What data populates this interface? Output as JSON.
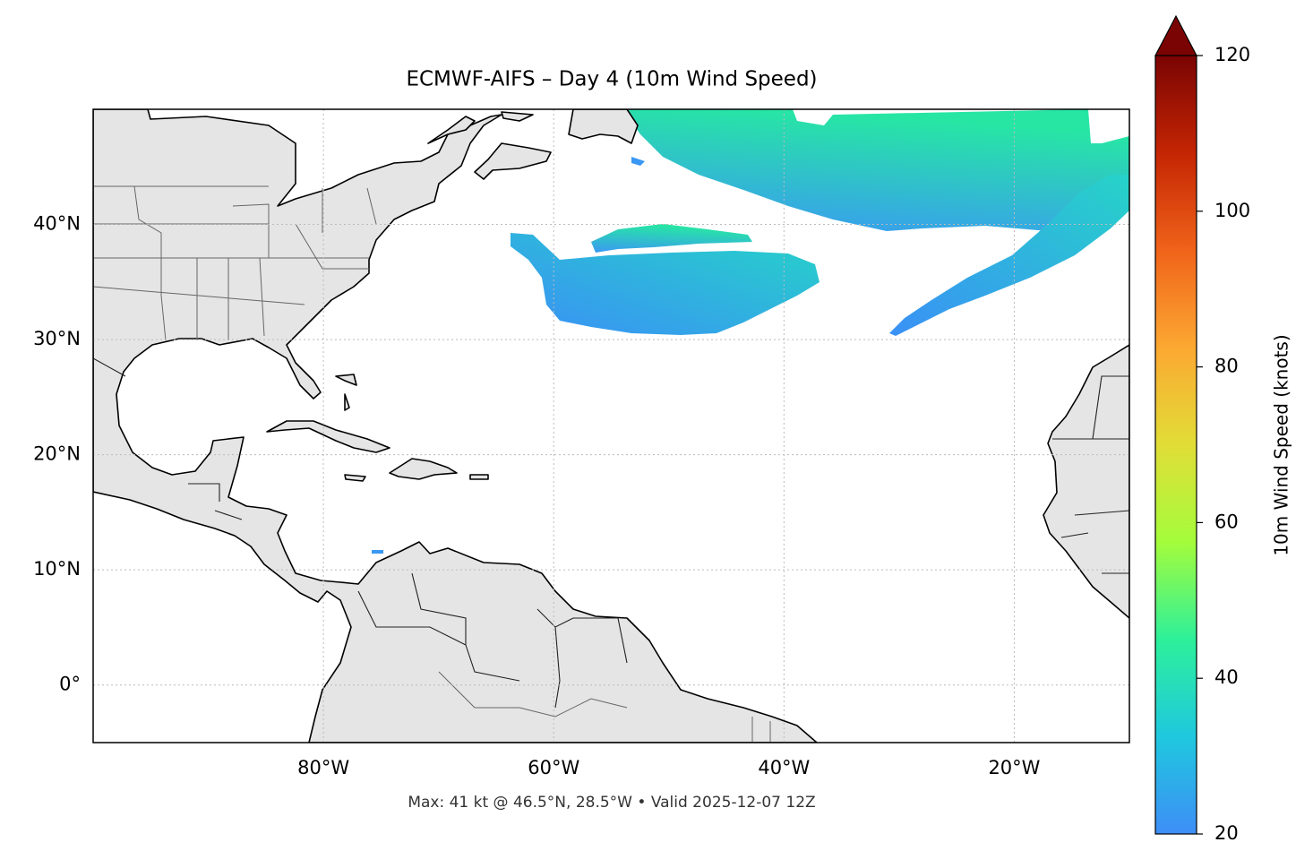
{
  "map": {
    "title": "ECMWF-AIFS – Day 4 (10m Wind Speed)",
    "xlim": [
      -100,
      -10
    ],
    "ylim": [
      -5,
      50
    ],
    "xticks": [
      {
        "value": -80,
        "label": "80°W"
      },
      {
        "value": -60,
        "label": "60°W"
      },
      {
        "value": -40,
        "label": "40°W"
      },
      {
        "value": -20,
        "label": "20°W"
      }
    ],
    "yticks": [
      {
        "value": 0,
        "label": "0°"
      },
      {
        "value": 10,
        "label": "10°N"
      },
      {
        "value": 20,
        "label": "20°N"
      },
      {
        "value": 30,
        "label": "30°N"
      },
      {
        "value": 40,
        "label": "40°N"
      }
    ],
    "grid": true,
    "footnote": "Max: 41 kt @ 46.5°N, 28.5°W • Valid 2025-12-07 12Z",
    "colorbar": {
      "label": "10m Wind Speed (knots)",
      "lim": [
        20,
        120
      ],
      "ticks": [
        20,
        40,
        60,
        80,
        100,
        120
      ],
      "extend": "max",
      "colors": [
        "#3e8ef7",
        "#1fc8de",
        "#2df09a",
        "#a4fc3b",
        "#e1dd37",
        "#fca832",
        "#f0631a",
        "#c42503",
        "#7a0403"
      ]
    }
  }
}
